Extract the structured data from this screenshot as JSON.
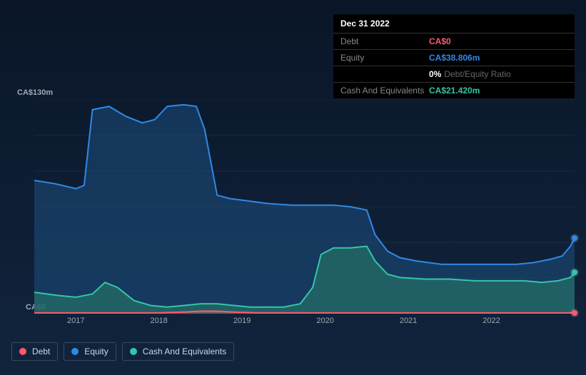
{
  "tooltip": {
    "date": "Dec 31 2022",
    "rows": [
      {
        "label": "Debt",
        "value": "CA$0",
        "color": "#ff5a6a"
      },
      {
        "label": "Equity",
        "value": "CA$38.806m",
        "color": "#2e8ae6"
      },
      {
        "label": "",
        "value": "0%",
        "extra": "Debt/Equity Ratio",
        "color": "#ffffff"
      },
      {
        "label": "Cash And Equivalents",
        "value": "CA$21.420m",
        "color": "#34c6a8"
      }
    ]
  },
  "chart": {
    "type": "area",
    "background": "transparent",
    "ymax_label": "CA$130m",
    "ymin_label": "CA$0",
    "ylim": [
      0,
      130
    ],
    "grid_h_count": 6,
    "grid_color": "rgba(255,255,255,0.06)",
    "axis_font_size": 11,
    "axis_color": "#a0a8b8",
    "x_range": [
      2016.5,
      2023.0
    ],
    "x_ticks": [
      2017,
      2018,
      2019,
      2020,
      2021,
      2022
    ],
    "series": [
      {
        "name": "Equity",
        "color": "#2e8ae6",
        "fill": "#1e4f80",
        "fill_opacity": 0.55,
        "line_width": 2,
        "marker_end": true,
        "marker_color": "#2e8ae6",
        "data": [
          [
            2016.5,
            81
          ],
          [
            2016.75,
            79
          ],
          [
            2017.0,
            76
          ],
          [
            2017.1,
            78
          ],
          [
            2017.2,
            124
          ],
          [
            2017.4,
            126
          ],
          [
            2017.6,
            120
          ],
          [
            2017.8,
            116
          ],
          [
            2017.95,
            118
          ],
          [
            2018.1,
            126
          ],
          [
            2018.3,
            127
          ],
          [
            2018.45,
            126
          ],
          [
            2018.55,
            112
          ],
          [
            2018.7,
            72
          ],
          [
            2018.85,
            70
          ],
          [
            2019.0,
            69
          ],
          [
            2019.3,
            67
          ],
          [
            2019.6,
            66
          ],
          [
            2019.9,
            66
          ],
          [
            2020.1,
            66
          ],
          [
            2020.3,
            65
          ],
          [
            2020.5,
            63
          ],
          [
            2020.6,
            48
          ],
          [
            2020.75,
            38
          ],
          [
            2020.9,
            34
          ],
          [
            2021.1,
            32
          ],
          [
            2021.4,
            30
          ],
          [
            2021.7,
            30
          ],
          [
            2022.0,
            30
          ],
          [
            2022.3,
            30
          ],
          [
            2022.5,
            31
          ],
          [
            2022.7,
            33
          ],
          [
            2022.85,
            35
          ],
          [
            2022.95,
            41
          ],
          [
            2023.0,
            46
          ]
        ]
      },
      {
        "name": "Cash And Equivalents",
        "color": "#34c6a8",
        "fill": "#246e66",
        "fill_opacity": 0.75,
        "line_width": 2,
        "marker_end": true,
        "marker_color": "#34c6a8",
        "data": [
          [
            2016.5,
            13
          ],
          [
            2016.8,
            11
          ],
          [
            2017.0,
            10
          ],
          [
            2017.2,
            12
          ],
          [
            2017.35,
            19
          ],
          [
            2017.5,
            16
          ],
          [
            2017.7,
            8
          ],
          [
            2017.9,
            5
          ],
          [
            2018.1,
            4
          ],
          [
            2018.3,
            5
          ],
          [
            2018.5,
            6
          ],
          [
            2018.7,
            6
          ],
          [
            2018.9,
            5
          ],
          [
            2019.1,
            4
          ],
          [
            2019.3,
            4
          ],
          [
            2019.5,
            4
          ],
          [
            2019.7,
            6
          ],
          [
            2019.85,
            16
          ],
          [
            2019.95,
            36
          ],
          [
            2020.1,
            40
          ],
          [
            2020.3,
            40
          ],
          [
            2020.5,
            41
          ],
          [
            2020.6,
            32
          ],
          [
            2020.75,
            24
          ],
          [
            2020.9,
            22
          ],
          [
            2021.2,
            21
          ],
          [
            2021.5,
            21
          ],
          [
            2021.8,
            20
          ],
          [
            2022.1,
            20
          ],
          [
            2022.4,
            20
          ],
          [
            2022.6,
            19
          ],
          [
            2022.8,
            20
          ],
          [
            2022.95,
            22
          ],
          [
            2023.0,
            25
          ]
        ]
      },
      {
        "name": "Debt",
        "color": "#ff5a6a",
        "fill": "#ff5a6a",
        "fill_opacity": 0.3,
        "line_width": 2,
        "marker_end": true,
        "marker_color": "#ff5a6a",
        "data": [
          [
            2016.5,
            0.5
          ],
          [
            2017.0,
            0.5
          ],
          [
            2017.5,
            0.5
          ],
          [
            2018.0,
            0.5
          ],
          [
            2018.3,
            1.0
          ],
          [
            2018.5,
            1.5
          ],
          [
            2018.7,
            1.5
          ],
          [
            2018.9,
            1.0
          ],
          [
            2019.2,
            0.5
          ],
          [
            2020.0,
            0.5
          ],
          [
            2021.0,
            0.5
          ],
          [
            2022.0,
            0.5
          ],
          [
            2023.0,
            0.5
          ]
        ]
      }
    ],
    "legend": {
      "position": "bottom-left",
      "items": [
        {
          "label": "Debt",
          "color": "#ff5a6a"
        },
        {
          "label": "Equity",
          "color": "#2e8ae6"
        },
        {
          "label": "Cash And Equivalents",
          "color": "#34c6a8"
        }
      ],
      "font_size": 12,
      "border_color": "#3a4a5f"
    }
  }
}
